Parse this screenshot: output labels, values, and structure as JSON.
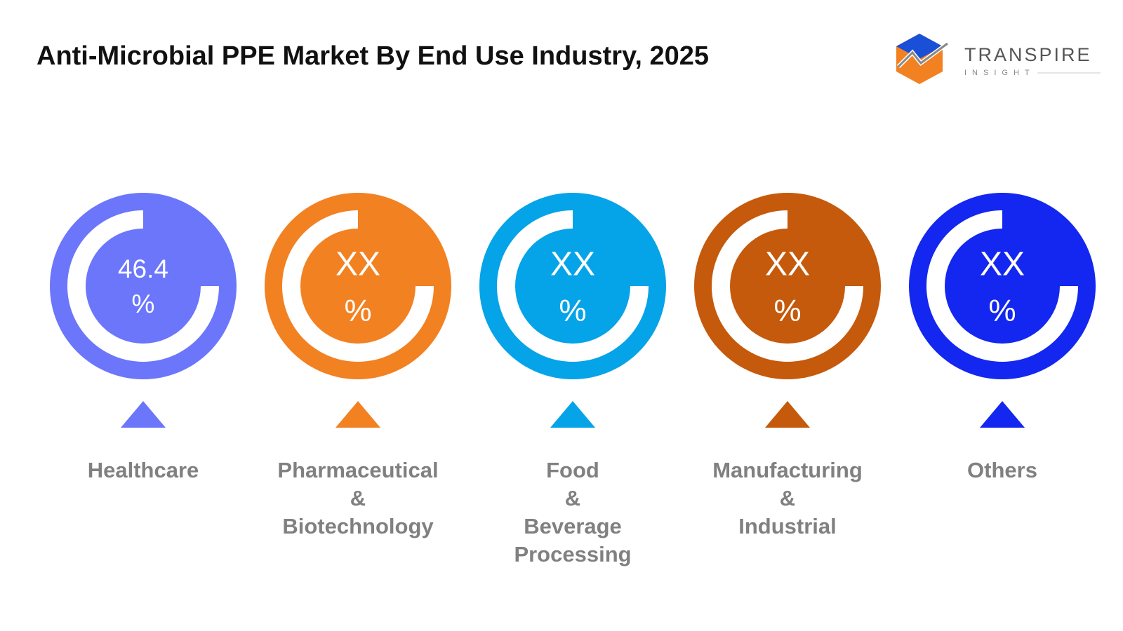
{
  "header": {
    "title": "Anti-Microbial PPE Market By End Use Industry, 2025"
  },
  "logo": {
    "name": "TRANSPIRE",
    "tagline": "INSIGHT"
  },
  "items": [
    {
      "value": "46.4",
      "unit": "%",
      "color": "#6b76fb",
      "label": [
        "Healthcare"
      ]
    },
    {
      "value": "XX",
      "unit": "%",
      "color": "#f28122",
      "label": [
        "Pharmaceutical",
        "&",
        "Biotechnology"
      ]
    },
    {
      "value": "XX",
      "unit": "%",
      "color": "#05a3e8",
      "label": [
        "Food",
        "&",
        "Beverage",
        "Processing"
      ]
    },
    {
      "value": "XX",
      "unit": "%",
      "color": "#c55a0c",
      "label": [
        "Manufacturing",
        "&",
        "Industrial"
      ]
    },
    {
      "value": "XX",
      "unit": "%",
      "color": "#1327f0",
      "label": [
        "Others"
      ]
    }
  ]
}
